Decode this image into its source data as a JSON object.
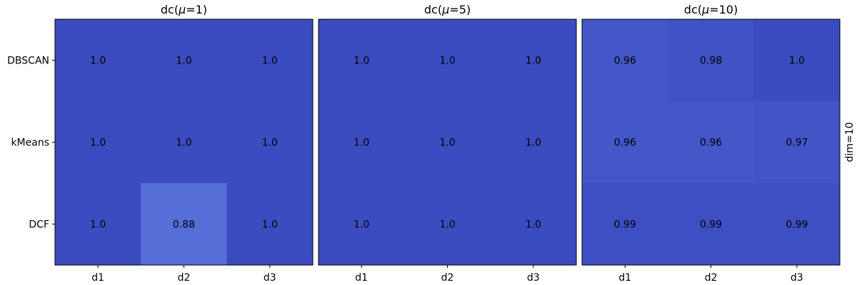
{
  "chart_data": {
    "type": "heatmap",
    "rows": [
      "DBSCAN",
      "kMeans",
      "DCF"
    ],
    "columns": [
      "d1",
      "d2",
      "d3"
    ],
    "side_label": "dim=10",
    "colormap": "coolwarm",
    "color_range": [
      0.0,
      1.0
    ],
    "panels": [
      {
        "title": "dc(μ=1)",
        "title_prefix": "dc(",
        "title_symbol": "μ",
        "title_suffix": "=1)",
        "values": [
          [
            1.0,
            1.0,
            1.0
          ],
          [
            1.0,
            1.0,
            1.0
          ],
          [
            1.0,
            0.88,
            1.0
          ]
        ],
        "labels": [
          [
            "1.0",
            "1.0",
            "1.0"
          ],
          [
            "1.0",
            "1.0",
            "1.0"
          ],
          [
            "1.0",
            "0.88",
            "1.0"
          ]
        ]
      },
      {
        "title": "dc(μ=5)",
        "title_prefix": "dc(",
        "title_symbol": "μ",
        "title_suffix": "=5)",
        "values": [
          [
            1.0,
            1.0,
            1.0
          ],
          [
            1.0,
            1.0,
            1.0
          ],
          [
            1.0,
            1.0,
            1.0
          ]
        ],
        "labels": [
          [
            "1.0",
            "1.0",
            "1.0"
          ],
          [
            "1.0",
            "1.0",
            "1.0"
          ],
          [
            "1.0",
            "1.0",
            "1.0"
          ]
        ]
      },
      {
        "title": "dc(μ=10)",
        "title_prefix": "dc(",
        "title_symbol": "μ",
        "title_suffix": "=10)",
        "values": [
          [
            0.96,
            0.98,
            1.0
          ],
          [
            0.96,
            0.96,
            0.97
          ],
          [
            0.99,
            0.99,
            0.99
          ]
        ],
        "labels": [
          [
            "0.96",
            "0.98",
            "1.0"
          ],
          [
            "0.96",
            "0.96",
            "0.97"
          ],
          [
            "0.99",
            "0.99",
            "0.99"
          ]
        ]
      }
    ]
  }
}
